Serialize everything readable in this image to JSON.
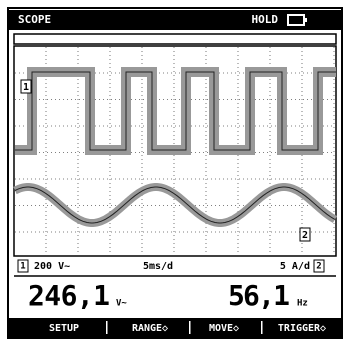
{
  "header": {
    "title": "SCOPE",
    "status": "HOLD"
  },
  "trace_markers": {
    "ch1": "1",
    "ch2": "2"
  },
  "status_bar": {
    "ch1_marker": "1",
    "ch1_range": "200 V~",
    "timebase": "5ms/d",
    "ch2_range": "5 A/d",
    "ch2_marker": "2"
  },
  "readings": [
    {
      "value": "246,1",
      "unit": "V~"
    },
    {
      "value": "56,1",
      "unit": "Hz"
    }
  ],
  "menu": [
    "SETUP",
    "RANGE◇",
    "MOVE◇",
    "TRIGGER◇"
  ]
}
